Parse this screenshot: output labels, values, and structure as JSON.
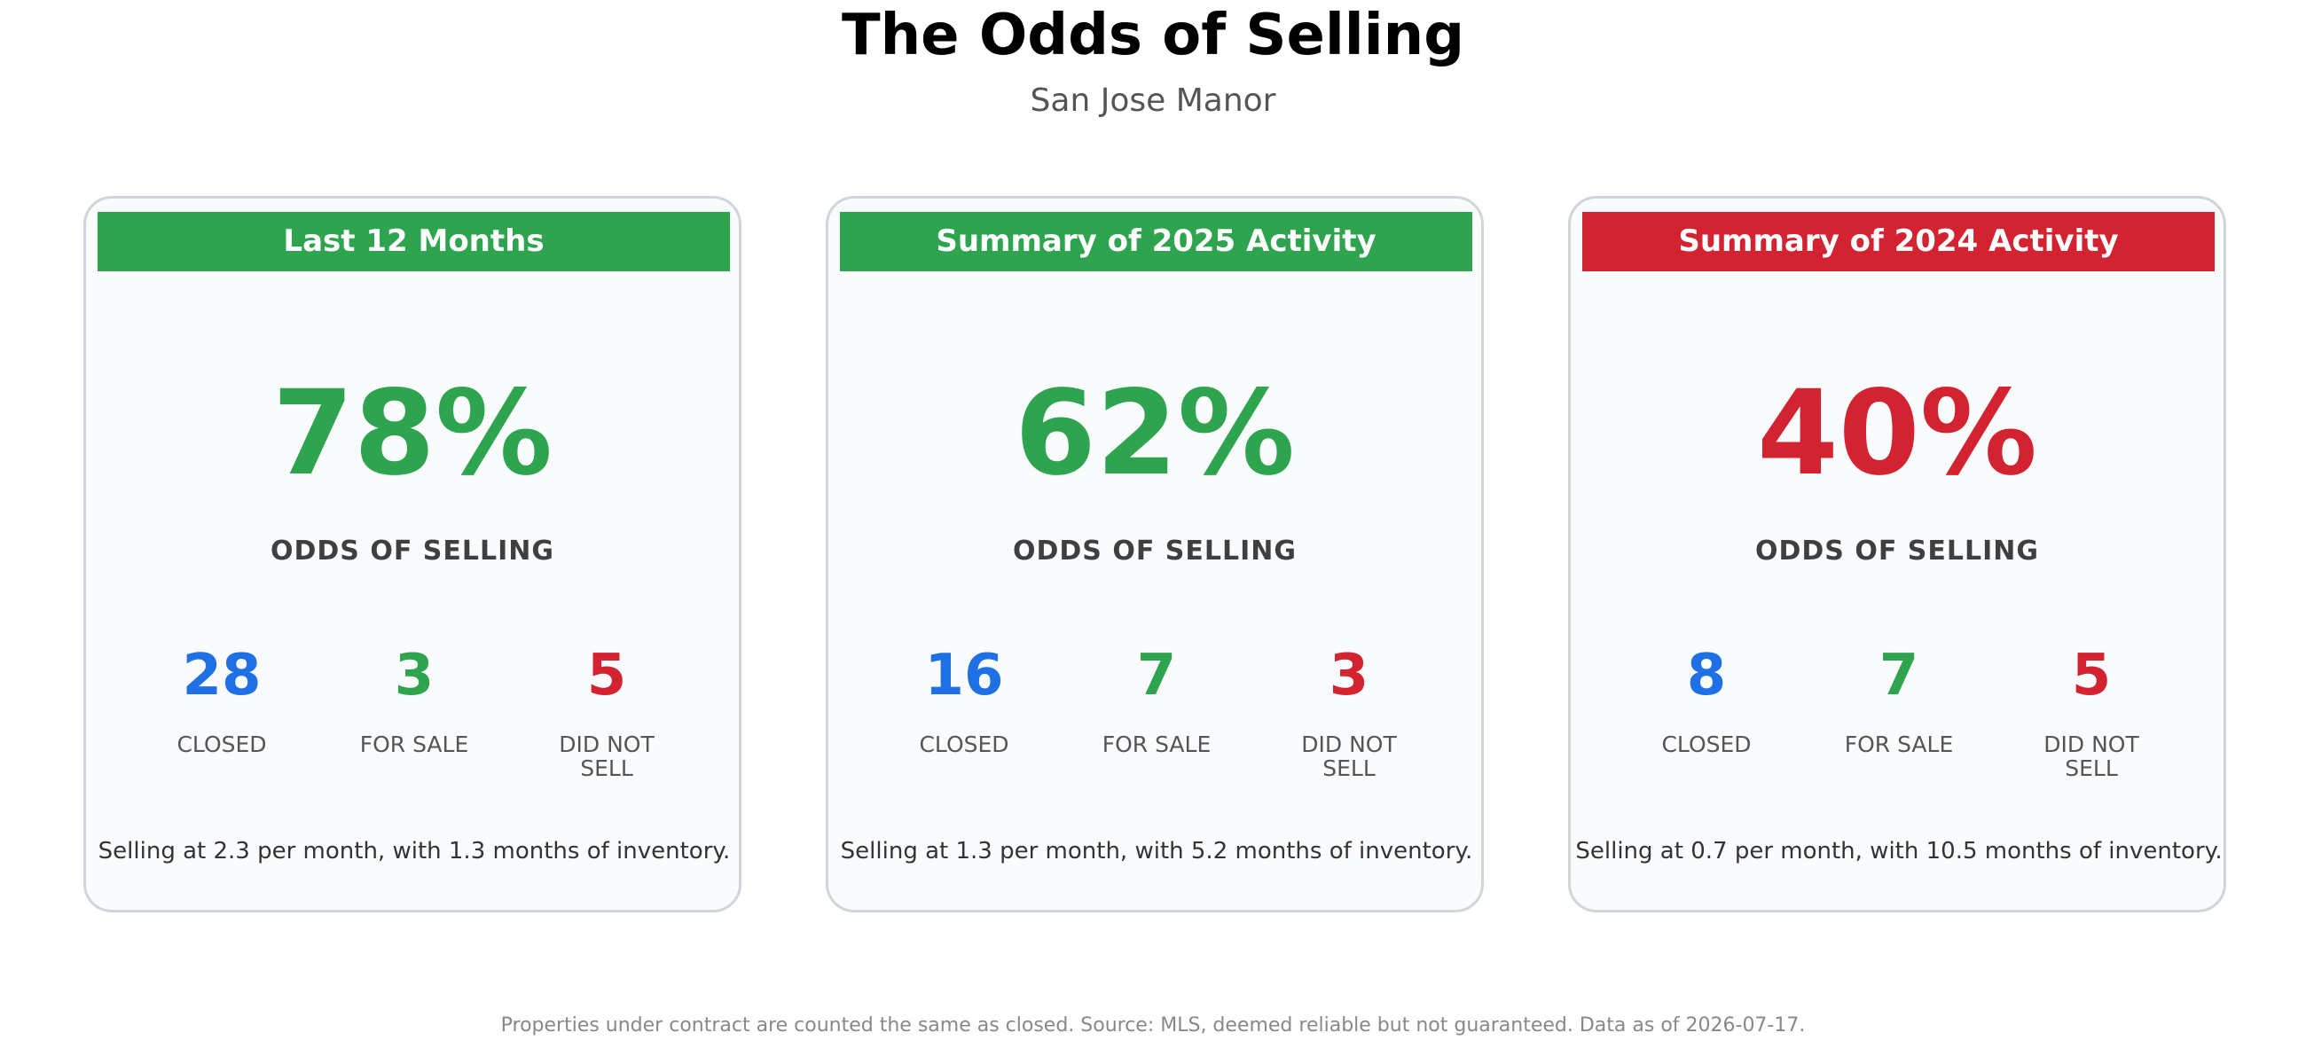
{
  "title": "The Odds of Selling",
  "subtitle": "San Jose Manor",
  "colors": {
    "green": "#2ea44f",
    "red": "#d32230",
    "blue": "#1f6fe5"
  },
  "cards": [
    {
      "header": "Last 12 Months",
      "header_color": "#2ea44f",
      "odds_pct": "78%",
      "odds_color": "#2ea44f",
      "odds_label": "ODDS OF SELLING",
      "closed": "28",
      "closed_label": "CLOSED",
      "for_sale": "3",
      "for_sale_label": "FOR SALE",
      "did_not_sell": "5",
      "did_not_sell_label_1": "DID NOT",
      "did_not_sell_label_2": "SELL",
      "summary": "Selling at 2.3 per month, with 1.3 months of inventory."
    },
    {
      "header": "Summary of 2025 Activity",
      "header_color": "#2ea44f",
      "odds_pct": "62%",
      "odds_color": "#2ea44f",
      "odds_label": "ODDS OF SELLING",
      "closed": "16",
      "closed_label": "CLOSED",
      "for_sale": "7",
      "for_sale_label": "FOR SALE",
      "did_not_sell": "3",
      "did_not_sell_label_1": "DID NOT",
      "did_not_sell_label_2": "SELL",
      "summary": "Selling at 1.3 per month, with 5.2 months of inventory."
    },
    {
      "header": "Summary of 2024 Activity",
      "header_color": "#d32230",
      "odds_pct": "40%",
      "odds_color": "#d32230",
      "odds_label": "ODDS OF SELLING",
      "closed": "8",
      "closed_label": "CLOSED",
      "for_sale": "7",
      "for_sale_label": "FOR SALE",
      "did_not_sell": "5",
      "did_not_sell_label_1": "DID NOT",
      "did_not_sell_label_2": "SELL",
      "summary": "Selling at 0.7 per month, with 10.5 months of inventory."
    }
  ],
  "footnote": "Properties under contract are counted the same as closed. Source: MLS, deemed reliable but not guaranteed. Data as of 2026-07-17."
}
